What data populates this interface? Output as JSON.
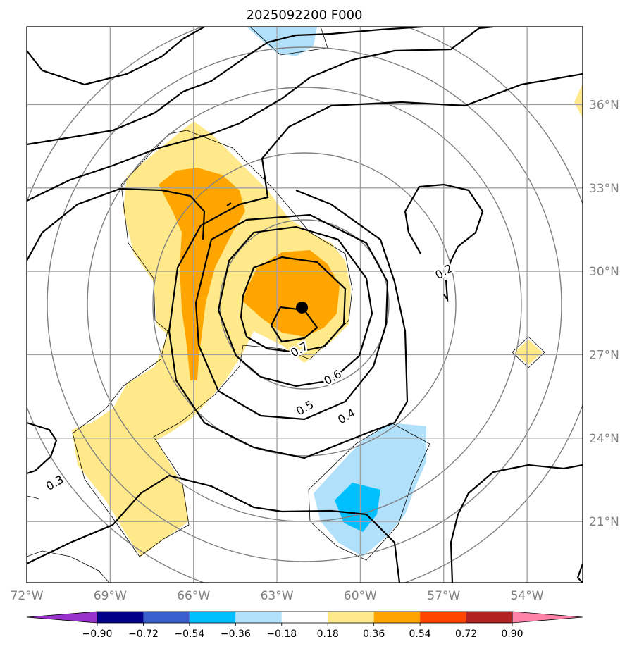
{
  "title": "2025092200 F000",
  "map": {
    "lon_ticks": [
      "72°W",
      "69°W",
      "66°W",
      "63°W",
      "60°W",
      "57°W",
      "54°W"
    ],
    "lat_ticks": [
      "36°N",
      "33°N",
      "30°N",
      "27°N",
      "24°N",
      "21°N"
    ],
    "lon_range": [
      -72,
      -52
    ],
    "lat_range": [
      18.8,
      38.8
    ],
    "storm_center": {
      "lon": -62.1,
      "lat": 28.7
    },
    "contour_labels": [
      {
        "text": "0.7",
        "lon": -62.2,
        "lat": 27.2
      },
      {
        "text": "0.6",
        "lon": -61.0,
        "lat": 26.2
      },
      {
        "text": "0.5",
        "lon": -62.0,
        "lat": 25.1
      },
      {
        "text": "0.4",
        "lon": -60.5,
        "lat": 24.8
      },
      {
        "text": "0.3",
        "lon": -71.0,
        "lat": 22.4
      },
      {
        "text": "0.2",
        "lon": -57.0,
        "lat": 30.0
      }
    ]
  },
  "colorbar": {
    "tick_labels": [
      "−0.90",
      "−0.72",
      "−0.54",
      "−0.36",
      "−0.18",
      "0.18",
      "0.36",
      "0.54",
      "0.72",
      "0.90"
    ],
    "colors": [
      "#9932cc",
      "#00008b",
      "#3a5fcd",
      "#00bfff",
      "#b0e0fa",
      "#ffffff",
      "#ffe98a",
      "#ffa500",
      "#ff4500",
      "#b22222",
      "#ff83a8"
    ]
  }
}
